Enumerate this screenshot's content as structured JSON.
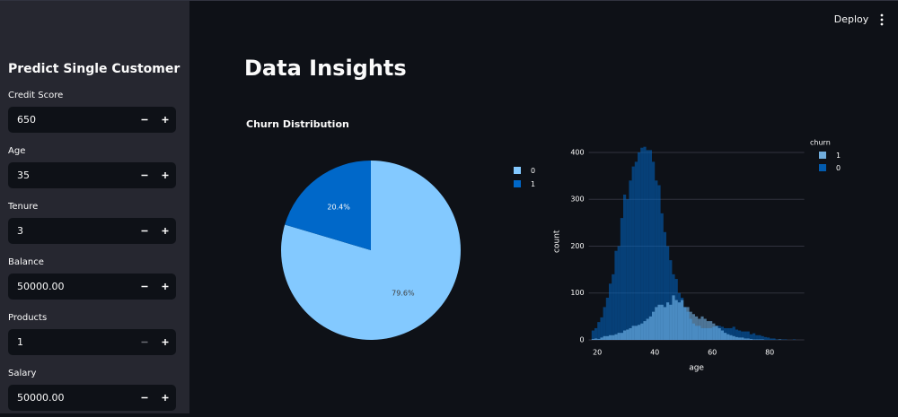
{
  "header": {
    "deploy": "Deploy"
  },
  "sidebar": {
    "title": "Predict Single Customer",
    "fields": [
      {
        "label": "Credit Score",
        "value": "650"
      },
      {
        "label": "Age",
        "value": "35"
      },
      {
        "label": "Tenure",
        "value": "3"
      },
      {
        "label": "Balance",
        "value": "50000.00"
      },
      {
        "label": "Products",
        "value": "1"
      },
      {
        "label": "Salary",
        "value": "50000.00"
      }
    ]
  },
  "main": {
    "title": "Data Insights"
  },
  "chart_data": [
    {
      "type": "pie",
      "title": "Churn Distribution",
      "categories": [
        "0",
        "1"
      ],
      "values": [
        79.6,
        20.4
      ],
      "value_labels": [
        "79.6%",
        "20.4%"
      ],
      "colors": [
        "#83c9ff",
        "#0068c9"
      ],
      "legend": "top-right"
    },
    {
      "type": "histogram",
      "x_label": "age",
      "y_label": "count",
      "legend_title": "churn",
      "bins": [
        18,
        19,
        20,
        21,
        22,
        23,
        24,
        25,
        26,
        27,
        28,
        29,
        30,
        31,
        32,
        33,
        34,
        35,
        36,
        37,
        38,
        39,
        40,
        41,
        42,
        43,
        44,
        45,
        46,
        47,
        48,
        49,
        50,
        51,
        52,
        53,
        54,
        55,
        56,
        57,
        58,
        59,
        60,
        61,
        62,
        63,
        64,
        65,
        66,
        67,
        68,
        69,
        70,
        71,
        72,
        73,
        74,
        75,
        76,
        77,
        78,
        79,
        80,
        81,
        82,
        83,
        84,
        85,
        86,
        87,
        88,
        89,
        90,
        91,
        92
      ],
      "series": [
        {
          "name": "1",
          "color": "#83c9ff",
          "values": [
            2,
            3,
            2,
            5,
            8,
            8,
            10,
            10,
            12,
            15,
            15,
            20,
            22,
            25,
            30,
            30,
            32,
            35,
            40,
            45,
            50,
            60,
            70,
            75,
            75,
            70,
            80,
            75,
            95,
            85,
            80,
            85,
            70,
            70,
            60,
            55,
            50,
            45,
            50,
            45,
            40,
            40,
            35,
            30,
            25,
            20,
            15,
            12,
            10,
            8,
            6,
            5,
            5,
            3,
            3,
            2,
            1,
            1,
            1,
            1,
            0,
            0,
            0,
            0,
            0,
            1,
            0,
            0,
            0,
            0,
            0,
            0,
            0,
            0
          ]
        },
        {
          "name": "0",
          "color": "#0068c9",
          "values": [
            20,
            25,
            38,
            48,
            70,
            90,
            120,
            140,
            190,
            200,
            260,
            310,
            300,
            340,
            370,
            380,
            400,
            410,
            412,
            405,
            405,
            380,
            340,
            330,
            270,
            230,
            200,
            170,
            140,
            130,
            100,
            90,
            70,
            60,
            45,
            35,
            30,
            30,
            25,
            25,
            25,
            25,
            28,
            30,
            30,
            28,
            25,
            25,
            25,
            28,
            22,
            20,
            18,
            18,
            18,
            12,
            14,
            10,
            10,
            8,
            6,
            5,
            3,
            3,
            1,
            1,
            1,
            1,
            0,
            0,
            1,
            0,
            0,
            0
          ]
        }
      ],
      "xlim": [
        17,
        92
      ],
      "ylim": [
        0,
        420
      ],
      "xticks": [
        20,
        40,
        60,
        80
      ],
      "yticks": [
        0,
        100,
        200,
        300,
        400
      ],
      "grid": true,
      "opacity": 0.55,
      "legend": "top-right"
    }
  ]
}
